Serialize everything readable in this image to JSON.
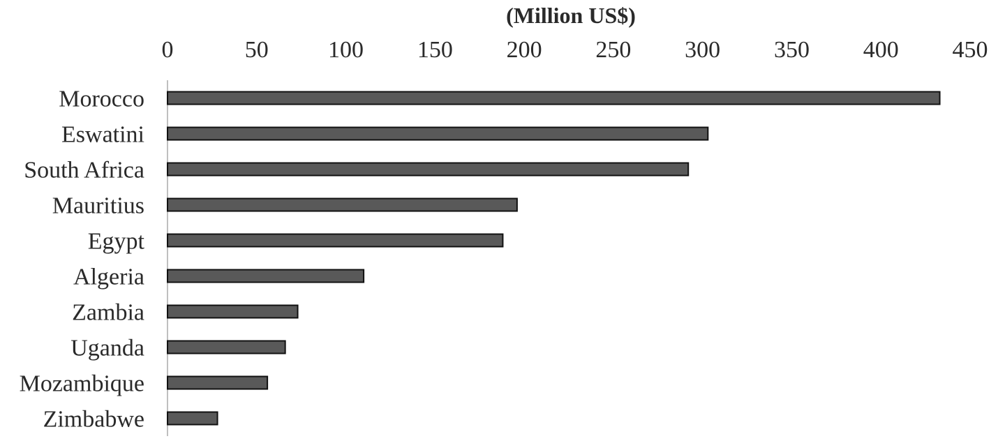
{
  "chart_data": {
    "type": "bar",
    "orientation": "horizontal",
    "title": "",
    "xlabel": "(Million US$)",
    "ylabel": "",
    "xlabel_position": "top",
    "x_axis_position": "top",
    "xlim": [
      0,
      450
    ],
    "xticks": [
      0,
      50,
      100,
      150,
      200,
      250,
      300,
      350,
      400,
      450
    ],
    "grid": false,
    "legend": "none",
    "categories": [
      "Morocco",
      "Eswatini",
      "South Africa",
      "Mauritius",
      "Egypt",
      "Algeria",
      "Zambia",
      "Uganda",
      "Mozambique",
      "Zimbabwe"
    ],
    "values": [
      433,
      303,
      292,
      196,
      188,
      110,
      73,
      66,
      56,
      28
    ],
    "colors": {
      "bar_fill": "#595959",
      "bar_stroke": "#111111",
      "axis_line": "#bfbfbf",
      "text": "#2a2a2a"
    }
  }
}
